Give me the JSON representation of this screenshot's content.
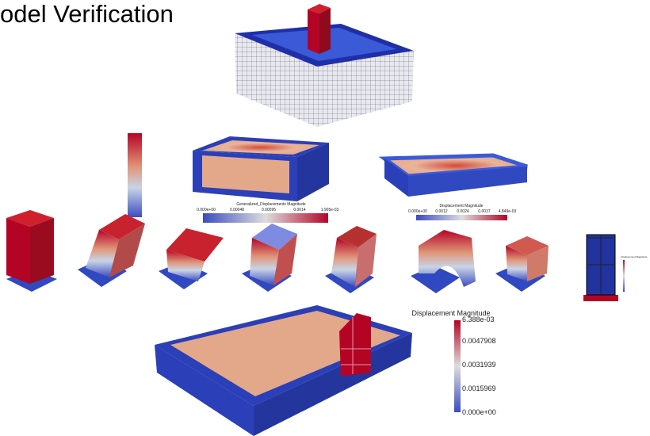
{
  "title": "odel Verification",
  "colorbars": [
    {
      "title": "Generalized_Displacements Magnitude",
      "labels": [
        "0.000e+00",
        "0.00048",
        "0.00095",
        "0.0014",
        "1.905e-03"
      ]
    },
    {
      "title": "Displacement Magnitude",
      "labels": [
        "0.000e+00",
        "0.0012",
        "0.0024",
        "0.0037",
        "4.849e-03"
      ]
    },
    {
      "title": "Displacement Magnitude"
    },
    {
      "title": "Displacement Magnitude",
      "labels": [
        "6.388e-03",
        "0.0047908",
        "0.0031939",
        "0.0015969",
        "0.000e+00"
      ]
    }
  ]
}
